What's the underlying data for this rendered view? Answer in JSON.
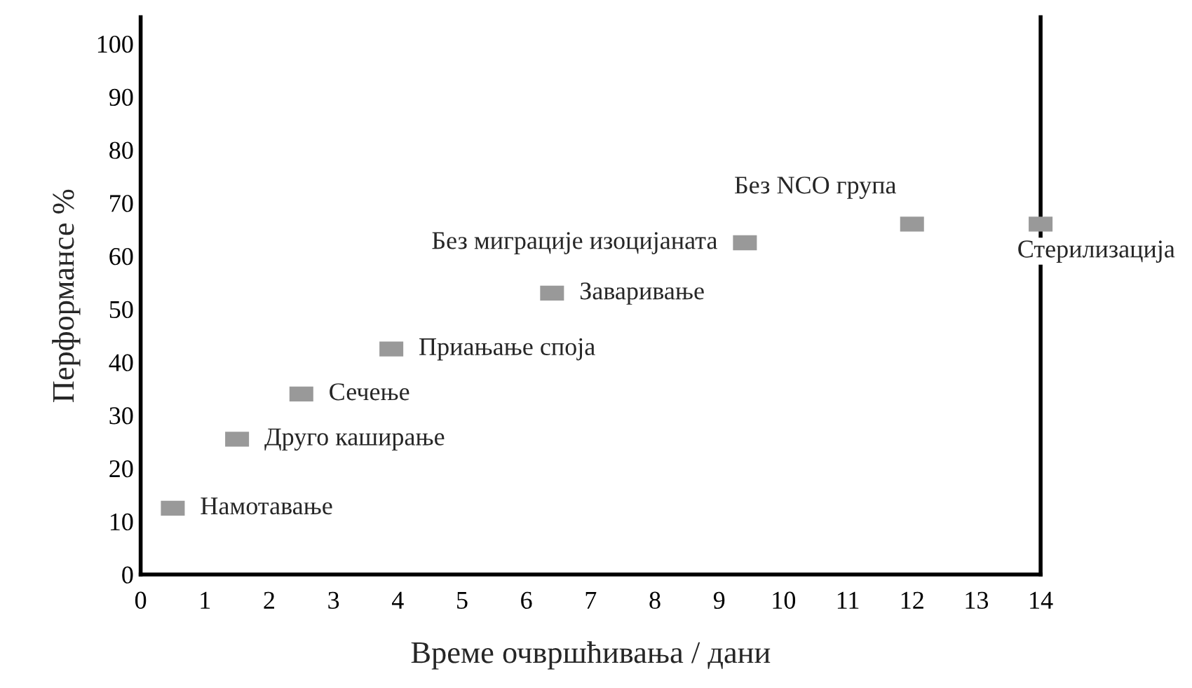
{
  "chart_data": {
    "type": "scatter",
    "xlabel": "Време очвршћивања / дани",
    "ylabel": "Перформансе %",
    "x": [
      0.5,
      1.5,
      2.5,
      3.9,
      6.4,
      9.4,
      12.0,
      14.0
    ],
    "series": [
      {
        "color": "#999999",
        "values": [
          12.5,
          25.5,
          34,
          42.5,
          53,
          62.5,
          66,
          66
        ],
        "value_labels": [
          "Намотавање",
          "Друго каширање",
          "Сечење",
          "Приањање споја",
          "Заваривање",
          "Без миграције изоцијаната",
          "Без NCO група",
          "Стерилизација"
        ]
      }
    ],
    "xlim": [
      0,
      14
    ],
    "xticks": [
      0,
      1,
      2,
      3,
      4,
      5,
      6,
      7,
      8,
      9,
      10,
      11,
      12,
      13,
      14
    ],
    "ylim": [
      0,
      105
    ],
    "yticks": [
      0,
      10,
      20,
      30,
      40,
      50,
      60,
      70,
      80,
      90,
      100
    ],
    "marker": "square"
  }
}
